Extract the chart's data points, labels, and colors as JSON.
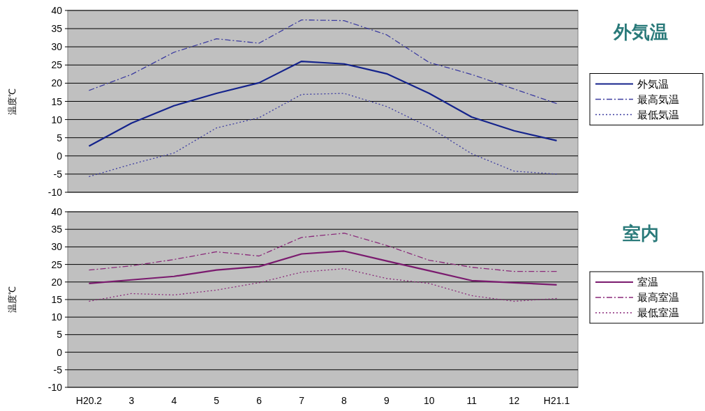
{
  "chart_data": [
    {
      "type": "line",
      "annotations": [
        "外気温"
      ],
      "ylabel": "温度℃",
      "categories": [
        null,
        null,
        null,
        null,
        null,
        null,
        null,
        null,
        null,
        null,
        null,
        null
      ],
      "ylim": [
        -10,
        40
      ],
      "yticks": [
        -10,
        -5,
        0,
        5,
        10,
        15,
        20,
        25,
        30,
        35,
        40
      ],
      "grid": "y",
      "legend": "right",
      "tick_labels": "y",
      "marker": "none",
      "series": [
        {
          "name": "外気温",
          "color": "#14238c",
          "line_style": "solid",
          "values": [
            2.7,
            9.0,
            13.8,
            17.2,
            20.1,
            26.0,
            25.3,
            22.6,
            17.2,
            10.7,
            6.9,
            4.2
          ]
        },
        {
          "name": "最高気温",
          "color": "#3c3ca0",
          "line_style": "dashed",
          "values": [
            18.0,
            22.4,
            28.5,
            32.2,
            31.0,
            37.4,
            37.2,
            33.3,
            25.7,
            22.4,
            18.4,
            14.4
          ]
        },
        {
          "name": "最低気温",
          "color": "#3c3ca0",
          "line_style": "dotted",
          "values": [
            -5.7,
            -2.3,
            0.8,
            7.7,
            10.5,
            16.9,
            17.2,
            13.6,
            7.9,
            0.6,
            -4.2,
            -5.0
          ]
        }
      ]
    },
    {
      "type": "line",
      "annotations": [
        "室内"
      ],
      "ylabel": "温度℃",
      "categories": [
        "H20.2",
        "3",
        "4",
        "5",
        "6",
        "7",
        "8",
        "9",
        "10",
        "11",
        "12",
        "H21.1"
      ],
      "ylim": [
        -10,
        40
      ],
      "yticks": [
        -10,
        -5,
        0,
        5,
        10,
        15,
        20,
        25,
        30,
        35,
        40
      ],
      "grid": "y",
      "legend": "right",
      "marker": "none",
      "series": [
        {
          "name": "室温",
          "color": "#7a1a6e",
          "line_style": "solid",
          "values": [
            19.6,
            20.6,
            21.6,
            23.4,
            24.4,
            28.0,
            28.8,
            26.0,
            23.2,
            20.4,
            19.8,
            19.2
          ]
        },
        {
          "name": "最高室温",
          "color": "#8a2a7a",
          "line_style": "dashed",
          "values": [
            23.4,
            24.6,
            26.4,
            28.6,
            27.4,
            32.7,
            33.9,
            30.4,
            26.2,
            24.2,
            23.0,
            23.0
          ]
        },
        {
          "name": "最低室温",
          "color": "#8a2a7a",
          "line_style": "dotted",
          "values": [
            14.5,
            16.7,
            16.3,
            17.7,
            19.8,
            22.8,
            23.8,
            21.0,
            19.6,
            16.1,
            14.5,
            15.3
          ]
        }
      ]
    }
  ]
}
